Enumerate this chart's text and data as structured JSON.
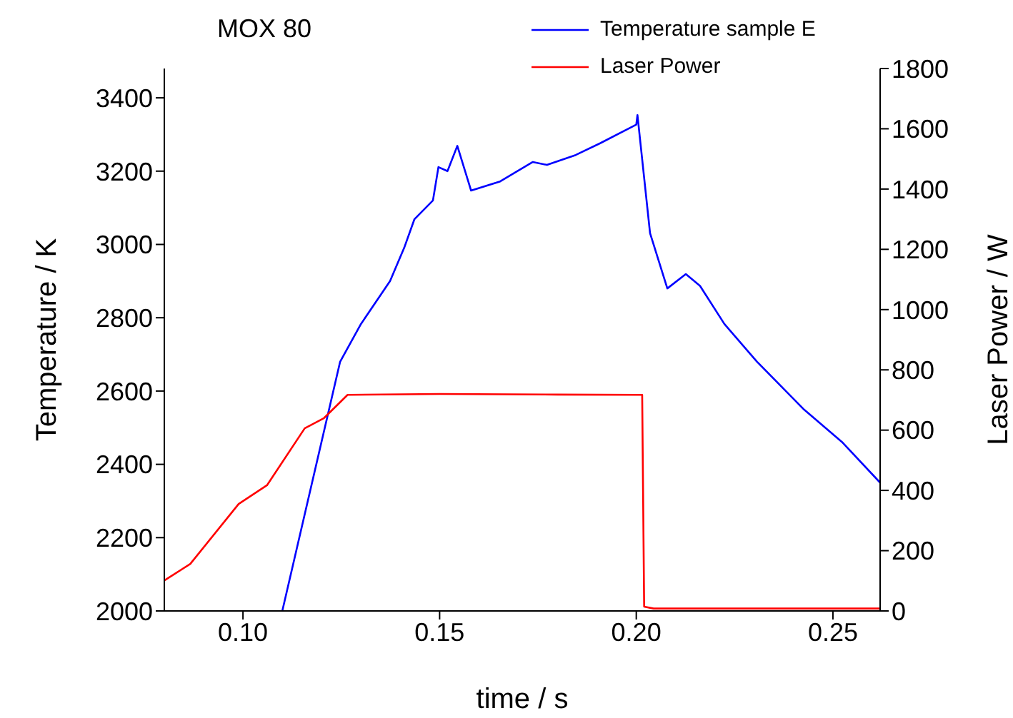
{
  "chart_data": {
    "type": "line",
    "title": "MOX 80",
    "xlabel": "time / s",
    "ylabel": "Temperature / K",
    "y2label": "Laser Power / W",
    "xlim": [
      0.08,
      0.262
    ],
    "xticks": [
      {
        "value": 0.1,
        "label": "0.10"
      },
      0.15,
      {
        "value": 0.2,
        "label": "0.20"
      },
      0.25
    ],
    "ylim": [
      2000,
      3480
    ],
    "yticks": [
      2000,
      2200,
      2400,
      2600,
      2800,
      3000,
      3200,
      3400
    ],
    "y2lim": [
      0,
      1800
    ],
    "y2ticks": [
      0,
      200,
      400,
      600,
      800,
      1000,
      1200,
      1400,
      1600,
      1800
    ],
    "legend": "top right",
    "grid": false,
    "marker": "none",
    "line_style": "solid",
    "series": [
      {
        "name": "Temperature sample E",
        "color": "#0000ff",
        "x": [
          0.11,
          0.1247,
          0.13,
          0.1374,
          0.141,
          0.1436,
          0.1483,
          0.1497,
          0.152,
          0.1545,
          0.158,
          0.1654,
          0.1737,
          0.1773,
          0.1846,
          0.1908,
          0.2,
          0.2003,
          0.2035,
          0.2079,
          0.2126,
          0.2162,
          0.2224,
          0.2307,
          0.2427,
          0.2525,
          0.262
        ],
        "values": [
          2000,
          2680,
          2783,
          2900,
          2991,
          3069,
          3120,
          3211,
          3200,
          3269,
          3147,
          3172,
          3225,
          3217,
          3244,
          3276,
          3327,
          3353,
          3031,
          2880,
          2919,
          2887,
          2783,
          2680,
          2549,
          2459,
          2350
        ]
      },
      {
        "name": "Laser Power",
        "color": "#ff0000",
        "axis": "y2",
        "x": [
          0.08,
          0.0866,
          0.0989,
          0.1061,
          0.1157,
          0.1206,
          0.1266,
          0.15,
          0.18,
          0.2015,
          0.202,
          0.2044,
          0.23,
          0.262
        ],
        "values": [
          101,
          156,
          355,
          417,
          606,
          640,
          717,
          720,
          718,
          717,
          14,
          8,
          8,
          8
        ]
      }
    ]
  }
}
